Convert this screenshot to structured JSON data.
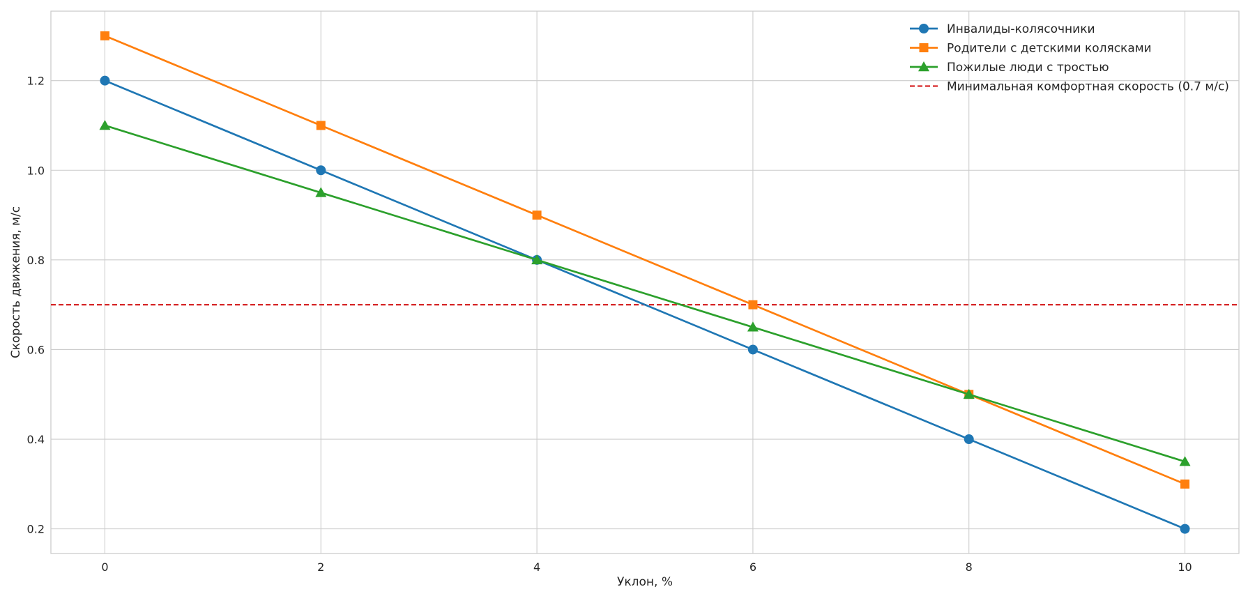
{
  "chart_data": {
    "type": "line",
    "title": "",
    "xlabel": "Уклон, %",
    "ylabel": "Скорость движения, м/с",
    "x": [
      0,
      2,
      4,
      6,
      8,
      10
    ],
    "xlim": [
      -0.5,
      10.5
    ],
    "ylim": [
      0.145,
      1.355
    ],
    "xticks": [
      0,
      2,
      4,
      6,
      8,
      10
    ],
    "yticks": [
      0.2,
      0.4,
      0.6,
      0.8,
      1.0,
      1.2
    ],
    "xtick_labels": [
      "0",
      "2",
      "4",
      "6",
      "8",
      "10"
    ],
    "ytick_labels": [
      "0.2",
      "0.4",
      "0.6",
      "0.8",
      "1.0",
      "1.2"
    ],
    "grid": true,
    "legend_position": "top-right",
    "series": [
      {
        "name": "Инвалиды-колясочники",
        "values": [
          1.2,
          1.0,
          0.8,
          0.6,
          0.4,
          0.2
        ],
        "color": "#1f77b4",
        "marker": "circle"
      },
      {
        "name": "Родители с детскими колясками",
        "values": [
          1.3,
          1.1,
          0.9,
          0.7,
          0.5,
          0.3
        ],
        "color": "#ff7f0e",
        "marker": "square"
      },
      {
        "name": "Пожилые люди с тростью",
        "values": [
          1.1,
          0.95,
          0.8,
          0.65,
          0.5,
          0.35
        ],
        "color": "#2ca02c",
        "marker": "triangle"
      }
    ],
    "reference_line": {
      "name": "Минимальная комфортная скорость (0.7 м/с)",
      "value": 0.7,
      "color": "#d62728",
      "style": "dashed"
    }
  }
}
